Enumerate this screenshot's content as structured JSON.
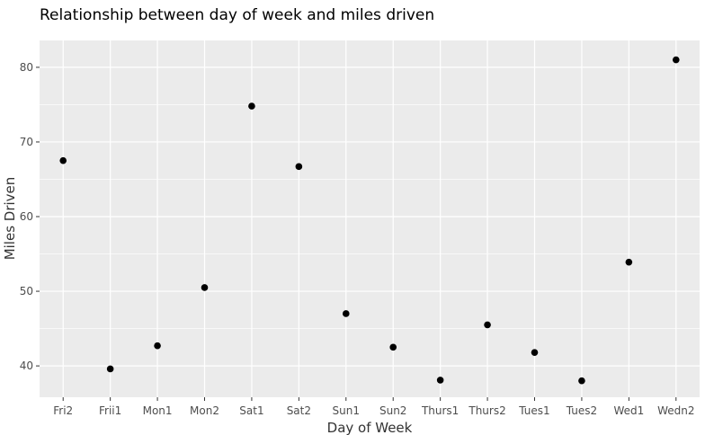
{
  "chart_data": {
    "type": "scatter",
    "title": "Relationship between day of week and miles driven",
    "xlabel": "Day of Week",
    "ylabel": "Miles Driven",
    "categories": [
      "Fri2",
      "Frii1",
      "Mon1",
      "Mon2",
      "Sat1",
      "Sat2",
      "Sun1",
      "Sun2",
      "Thurs1",
      "Thurs2",
      "Tues1",
      "Tues2",
      "Wed1",
      "Wedn2"
    ],
    "series": [
      {
        "values": [
          67.5,
          39.6,
          42.7,
          50.5,
          74.8,
          66.7,
          47.0,
          42.5,
          38.1,
          45.5,
          41.8,
          38.0,
          53.9,
          81.0
        ]
      }
    ],
    "ylim": [
      35.8,
      83.6
    ],
    "yticks": [
      40,
      50,
      60,
      70,
      80
    ],
    "grid": true,
    "legend": "none",
    "point_color": "#000000",
    "panel_color": "#ebebeb",
    "grid_color": "#ffffff"
  }
}
